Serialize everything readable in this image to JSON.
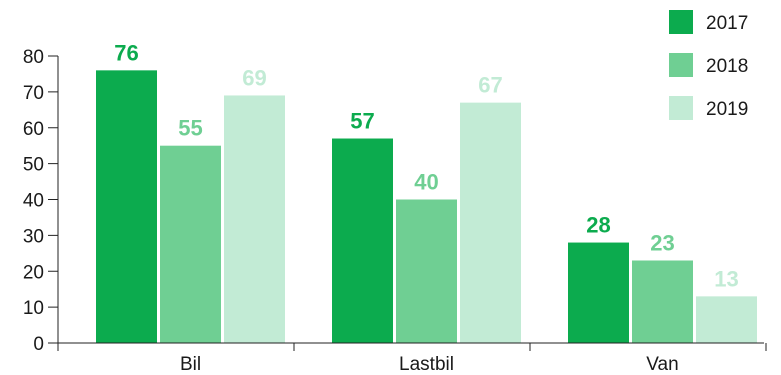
{
  "chart_data": {
    "type": "bar",
    "categories": [
      "Bil",
      "Lastbil",
      "Van"
    ],
    "series": [
      {
        "name": "2017",
        "values": [
          76,
          57,
          28
        ],
        "color": "#0cab4e"
      },
      {
        "name": "2018",
        "values": [
          55,
          40,
          23
        ],
        "color": "#6fcf93"
      },
      {
        "name": "2019",
        "values": [
          69,
          67,
          13
        ],
        "color": "#c2ebd5"
      }
    ],
    "ylim": [
      0,
      80
    ],
    "yticks": [
      0,
      10,
      20,
      30,
      40,
      50,
      60,
      70,
      80
    ],
    "legend_position": "top-right",
    "grid": false,
    "title": "",
    "xlabel": "",
    "ylabel": ""
  }
}
